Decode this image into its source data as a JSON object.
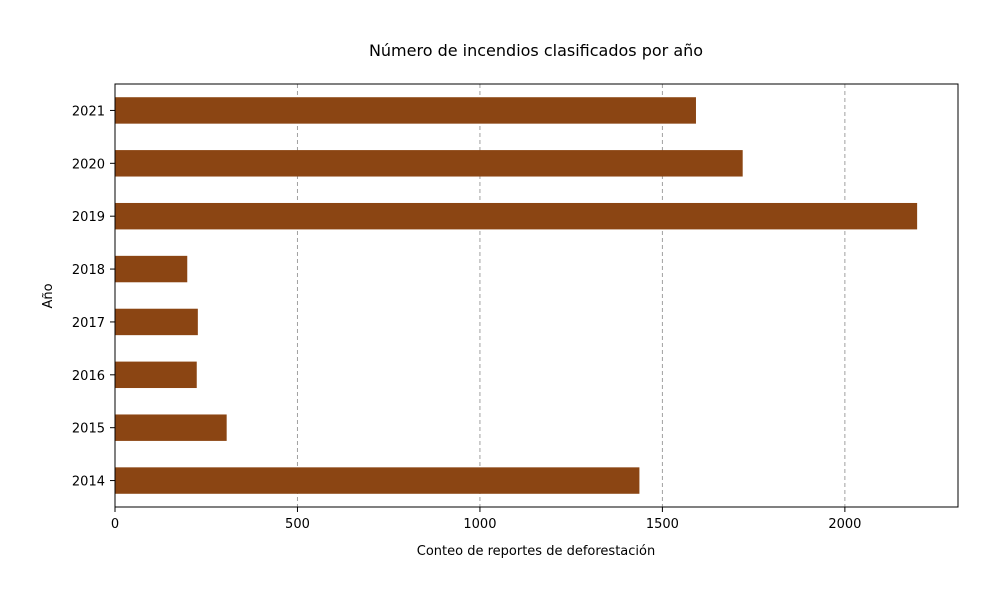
{
  "chart_data": {
    "type": "bar",
    "orientation": "horizontal",
    "title": "Número de incendios clasificados por año",
    "xlabel": "Conteo de reportes de deforestación",
    "ylabel": "Año",
    "categories": [
      "2014",
      "2015",
      "2016",
      "2017",
      "2018",
      "2019",
      "2020",
      "2021"
    ],
    "values": [
      1437,
      306,
      224,
      227,
      198,
      2198,
      1720,
      1592
    ],
    "xlim": [
      0,
      2310
    ],
    "xticks": [
      0,
      500,
      1000,
      1500,
      2000
    ],
    "grid": "x-dashed",
    "bar_color": "#8B4513",
    "grid_color": "#a0a0a0"
  }
}
